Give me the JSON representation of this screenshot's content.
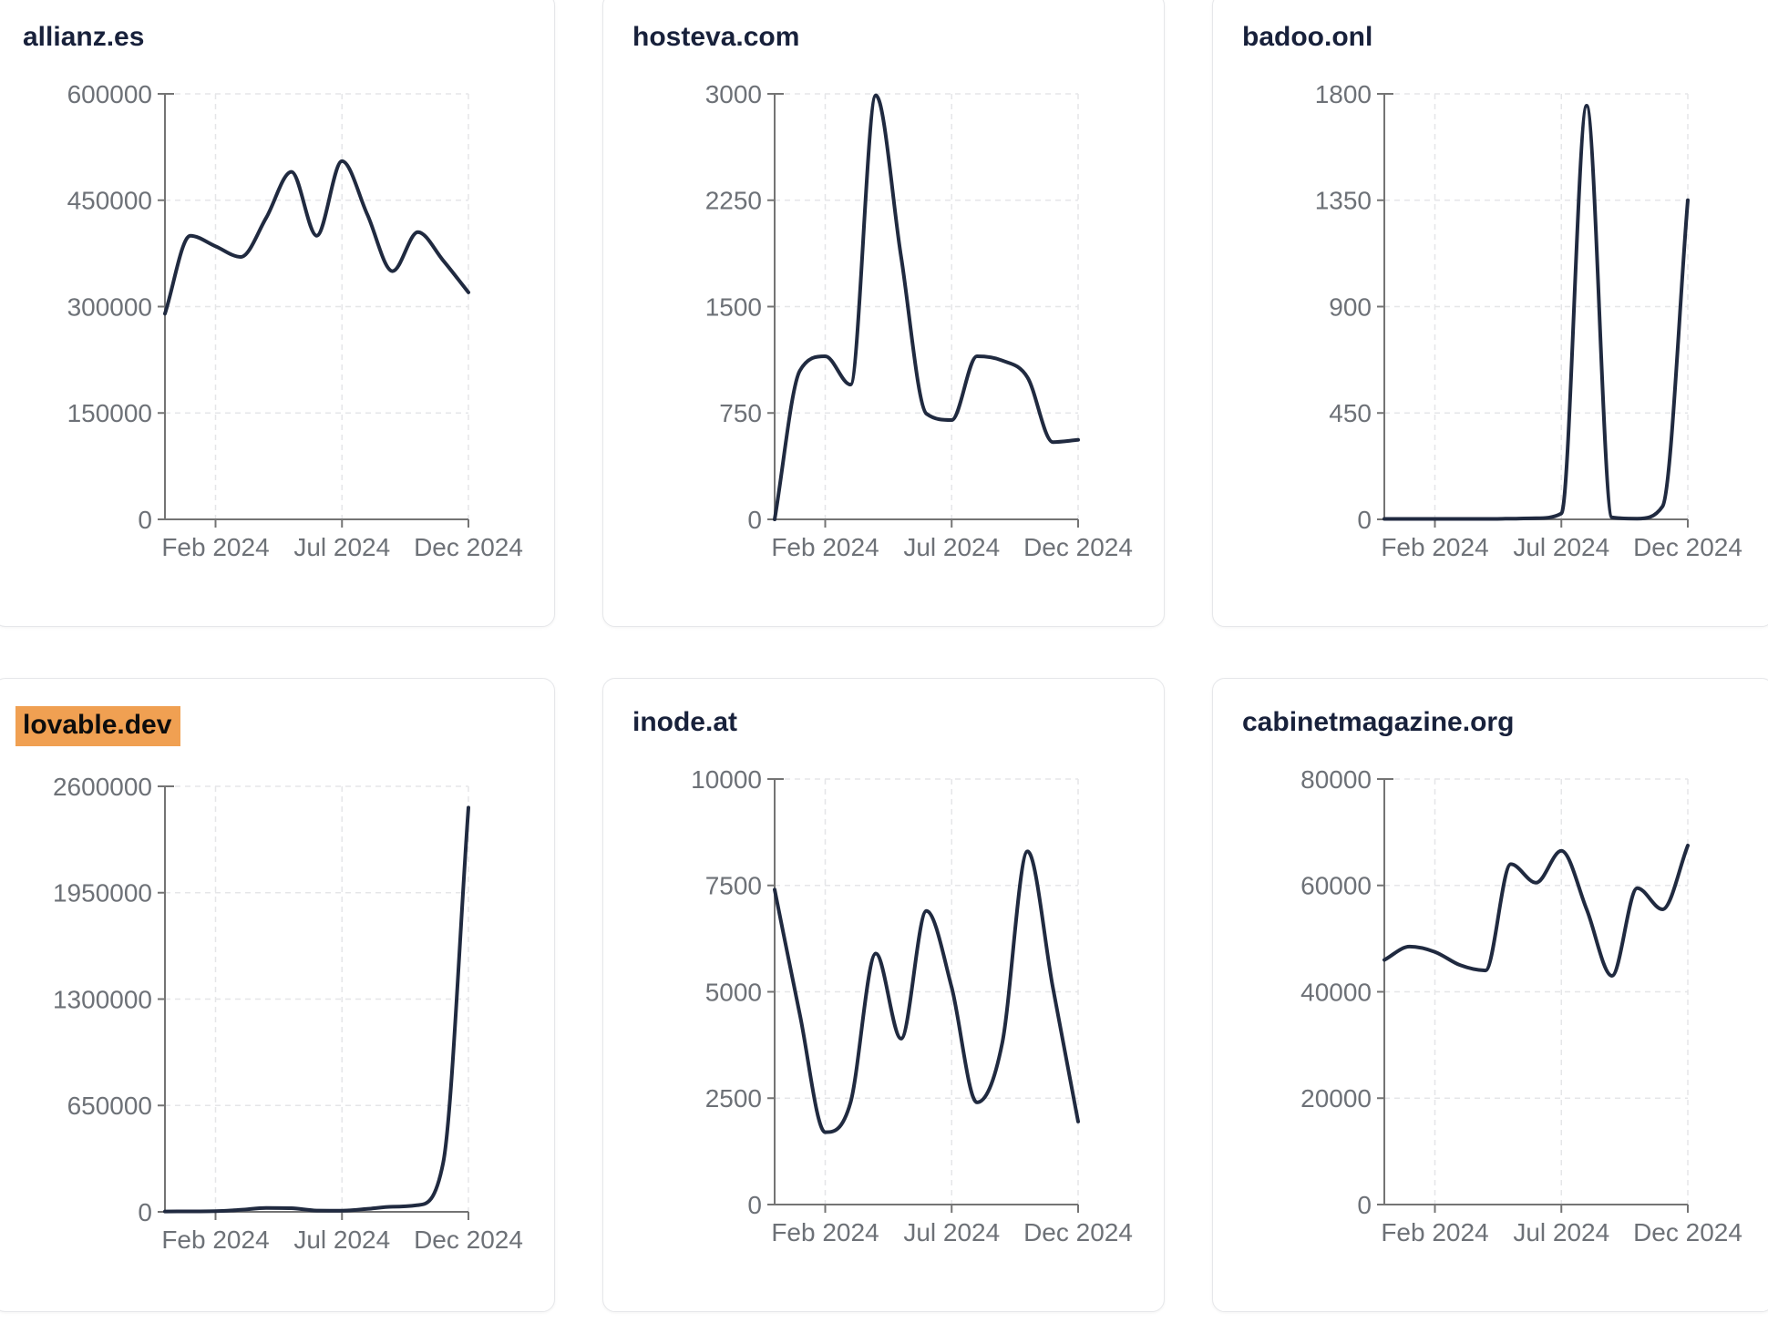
{
  "style": {
    "page_bg": "#ffffff",
    "card_bg": "#ffffff",
    "card_border": "#e6e7ea",
    "title_color": "#18213b",
    "highlight_bg": "#f0a052",
    "highlight_text": "#0d0d0d",
    "line_color": "#202a40",
    "axis_color": "#747474",
    "tick_label_color": "#6d7177",
    "grid_color": "#e5e6e8"
  },
  "chart_data": [
    {
      "type": "line",
      "title": "allianz.es",
      "title_highlighted": false,
      "x": [
        "Dec 2023",
        "Jan 2024",
        "Feb 2024",
        "Mar 2024",
        "Apr 2024",
        "May 2024",
        "Jun 2024",
        "Jul 2024",
        "Aug 2024",
        "Sep 2024",
        "Oct 2024",
        "Nov 2024",
        "Dec 2024"
      ],
      "values": [
        290000,
        400000,
        385000,
        370000,
        425000,
        490000,
        400000,
        505000,
        430000,
        350000,
        405000,
        365000,
        320000
      ],
      "y_ticks": [
        0,
        150000,
        300000,
        450000,
        600000
      ],
      "ylim": [
        0,
        600000
      ],
      "x_tick_labels": [
        "Feb 2024",
        "Jul 2024",
        "Dec 2024"
      ],
      "x_tick_indices": [
        2,
        7,
        12
      ],
      "grid": "dashed",
      "legend": "none"
    },
    {
      "type": "line",
      "title": "hosteva.com",
      "title_highlighted": false,
      "x": [
        "Dec 2023",
        "Jan 2024",
        "Feb 2024",
        "Mar 2024",
        "Apr 2024",
        "May 2024",
        "Jun 2024",
        "Jul 2024",
        "Aug 2024",
        "Sep 2024",
        "Oct 2024",
        "Nov 2024",
        "Dec 2024"
      ],
      "values": [
        0,
        1050,
        1150,
        950,
        2990,
        1850,
        745,
        700,
        1150,
        1120,
        1000,
        545,
        560
      ],
      "y_ticks": [
        0,
        750,
        1500,
        2250,
        3000
      ],
      "ylim": [
        0,
        3000
      ],
      "x_tick_labels": [
        "Feb 2024",
        "Jul 2024",
        "Dec 2024"
      ],
      "x_tick_indices": [
        2,
        7,
        12
      ],
      "grid": "dashed",
      "legend": "none"
    },
    {
      "type": "line",
      "title": "badoo.onl",
      "title_highlighted": false,
      "x": [
        "Dec 2023",
        "Jan 2024",
        "Feb 2024",
        "Mar 2024",
        "Apr 2024",
        "May 2024",
        "Jun 2024",
        "Jul 2024",
        "Aug 2024",
        "Sep 2024",
        "Oct 2024",
        "Nov 2024",
        "Dec 2024"
      ],
      "values": [
        2,
        2,
        2,
        2,
        2,
        3,
        5,
        25,
        1750,
        8,
        3,
        55,
        1350
      ],
      "y_ticks": [
        0,
        450,
        900,
        1350,
        1800
      ],
      "ylim": [
        0,
        1800
      ],
      "x_tick_labels": [
        "Feb 2024",
        "Jul 2024",
        "Dec 2024"
      ],
      "x_tick_indices": [
        2,
        7,
        12
      ],
      "grid": "dashed",
      "legend": "none"
    },
    {
      "type": "line",
      "title": "lovable.dev",
      "title_highlighted": true,
      "x": [
        "Dec 2023",
        "Jan 2024",
        "Feb 2024",
        "Mar 2024",
        "Apr 2024",
        "May 2024",
        "Jun 2024",
        "Jul 2024",
        "Aug 2024",
        "Sep 2024",
        "Oct 2024",
        "Nov 2024",
        "Dec 2024"
      ],
      "values": [
        2000,
        3000,
        4000,
        12000,
        24000,
        22000,
        8000,
        7000,
        18000,
        31000,
        41000,
        300000,
        2470000
      ],
      "y_ticks": [
        0,
        650000,
        1300000,
        1950000,
        2600000
      ],
      "ylim": [
        0,
        2600000
      ],
      "x_tick_labels": [
        "Feb 2024",
        "Jul 2024",
        "Dec 2024"
      ],
      "x_tick_indices": [
        2,
        7,
        12
      ],
      "grid": "dashed",
      "legend": "none"
    },
    {
      "type": "line",
      "title": "inode.at",
      "title_highlighted": false,
      "x": [
        "Dec 2023",
        "Jan 2024",
        "Feb 2024",
        "Mar 2024",
        "Apr 2024",
        "May 2024",
        "Jun 2024",
        "Jul 2024",
        "Aug 2024",
        "Sep 2024",
        "Oct 2024",
        "Nov 2024",
        "Dec 2024"
      ],
      "values": [
        7400,
        4450,
        1700,
        2400,
        5900,
        3900,
        6900,
        5100,
        2400,
        3800,
        8300,
        5100,
        1950
      ],
      "y_ticks": [
        0,
        2500,
        5000,
        7500,
        10000
      ],
      "ylim": [
        0,
        10000
      ],
      "x_tick_labels": [
        "Feb 2024",
        "Jul 2024",
        "Dec 2024"
      ],
      "x_tick_indices": [
        2,
        7,
        12
      ],
      "grid": "dashed",
      "legend": "none"
    },
    {
      "type": "line",
      "title": "cabinetmagazine.org",
      "title_highlighted": false,
      "x": [
        "Dec 2023",
        "Jan 2024",
        "Feb 2024",
        "Mar 2024",
        "Apr 2024",
        "May 2024",
        "Jun 2024",
        "Jul 2024",
        "Aug 2024",
        "Sep 2024",
        "Oct 2024",
        "Nov 2024",
        "Dec 2024"
      ],
      "values": [
        46000,
        48500,
        47500,
        45000,
        44000,
        64000,
        60500,
        66500,
        55500,
        43000,
        59500,
        55500,
        67500
      ],
      "y_ticks": [
        0,
        20000,
        40000,
        60000,
        80000
      ],
      "ylim": [
        0,
        80000
      ],
      "x_tick_labels": [
        "Feb 2024",
        "Jul 2024",
        "Dec 2024"
      ],
      "x_tick_indices": [
        2,
        7,
        12
      ],
      "grid": "dashed",
      "legend": "none"
    }
  ]
}
